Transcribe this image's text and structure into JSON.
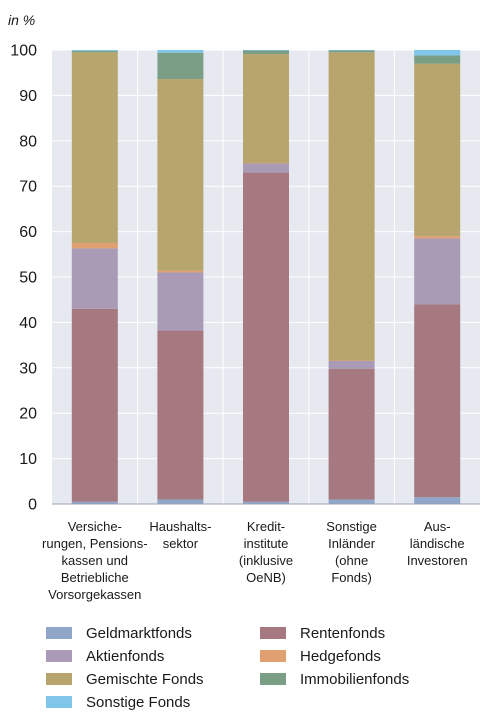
{
  "chart_data": {
    "type": "bar",
    "stacked": true,
    "ylabel": "in %",
    "ylim": [
      0,
      100
    ],
    "yticks": [
      0,
      10,
      20,
      30,
      40,
      50,
      60,
      70,
      80,
      90,
      100
    ],
    "grid": true,
    "legend_position": "bottom",
    "categories": [
      [
        "Versiche-",
        "rungen, Pensions-",
        "kassen und",
        "Betriebliche",
        "Vorsorgekassen"
      ],
      [
        "Haushalts-",
        "sektor"
      ],
      [
        "Kredit-",
        "institute",
        "(inklusive",
        "OeNB)"
      ],
      [
        "Sonstige",
        "Inländer",
        "(ohne",
        "Fonds)"
      ],
      [
        "Aus-",
        "ländische",
        "Investoren"
      ]
    ],
    "series": [
      {
        "name": "Geldmarktfonds",
        "color": "#8fa6c8",
        "values": [
          0.5,
          1.0,
          0.5,
          1.0,
          1.5
        ]
      },
      {
        "name": "Rentenfonds",
        "color": "#a6787f",
        "values": [
          42.5,
          37.2,
          72.5,
          28.8,
          42.5
        ]
      },
      {
        "name": "Aktienfonds",
        "color": "#a99ab6",
        "values": [
          13.3,
          12.8,
          2.0,
          1.7,
          14.5
        ]
      },
      {
        "name": "Hedgefonds",
        "color": "#e1a072",
        "values": [
          1.2,
          0.4,
          0.1,
          0.1,
          0.5
        ]
      },
      {
        "name": "Gemischte Fonds",
        "color": "#b8a56e",
        "values": [
          42.0,
          42.2,
          24.0,
          67.9,
          38.0
        ]
      },
      {
        "name": "Immobilienfonds",
        "color": "#7a9e86",
        "values": [
          0.3,
          5.8,
          0.8,
          0.4,
          1.8
        ]
      },
      {
        "name": "Sonstige Fonds",
        "color": "#7fc6ea",
        "values": [
          0.2,
          0.6,
          0.1,
          0.1,
          1.2
        ]
      }
    ],
    "legend_order": [
      "Geldmarktfonds",
      "Rentenfonds",
      "Aktienfonds",
      "Hedgefonds",
      "Gemischte Fonds",
      "Immobilienfonds",
      "Sonstige Fonds"
    ]
  },
  "style": {
    "plot_background": "#e6e9f0",
    "grid_color": "#ffffff"
  }
}
